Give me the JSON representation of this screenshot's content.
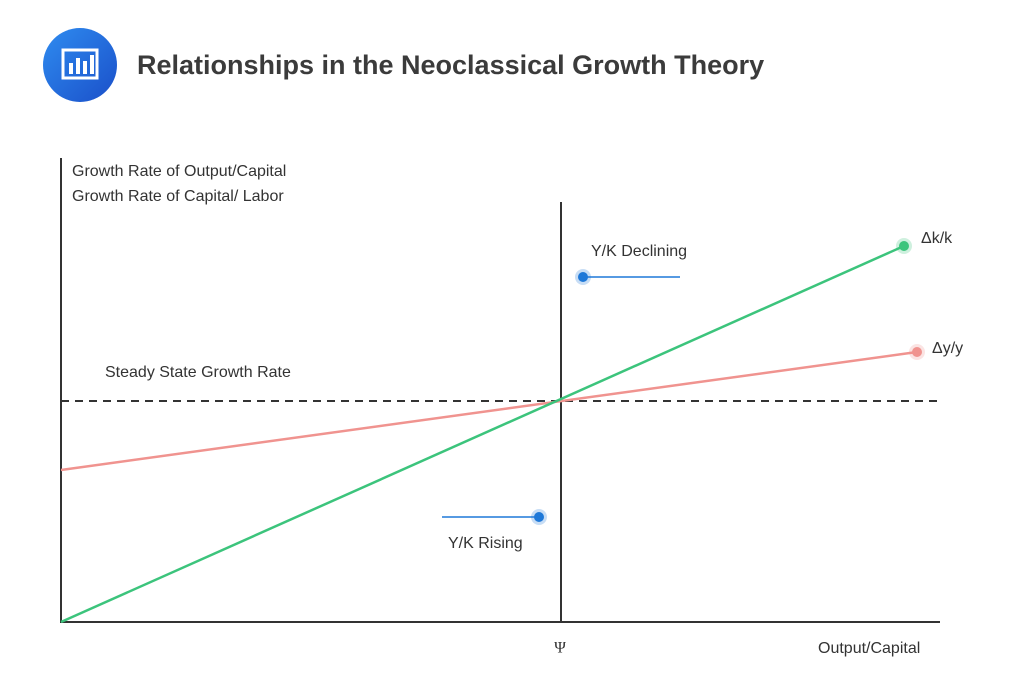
{
  "header": {
    "title": "Relationships in the Neoclassical Growth Theory"
  },
  "axes": {
    "y_label": [
      "Growth Rate of Output/Capital",
      "Growth Rate of Capital/ Labor"
    ],
    "x_label": "Output/Capital",
    "x_marker": "Ψ"
  },
  "lines": [
    {
      "label": "Δk/k"
    },
    {
      "label": "Δy/y"
    }
  ],
  "annotations": {
    "steady_state": "Steady State Growth Rate",
    "declining": "Y/K Declining",
    "rising": "Y/K Rising"
  }
}
